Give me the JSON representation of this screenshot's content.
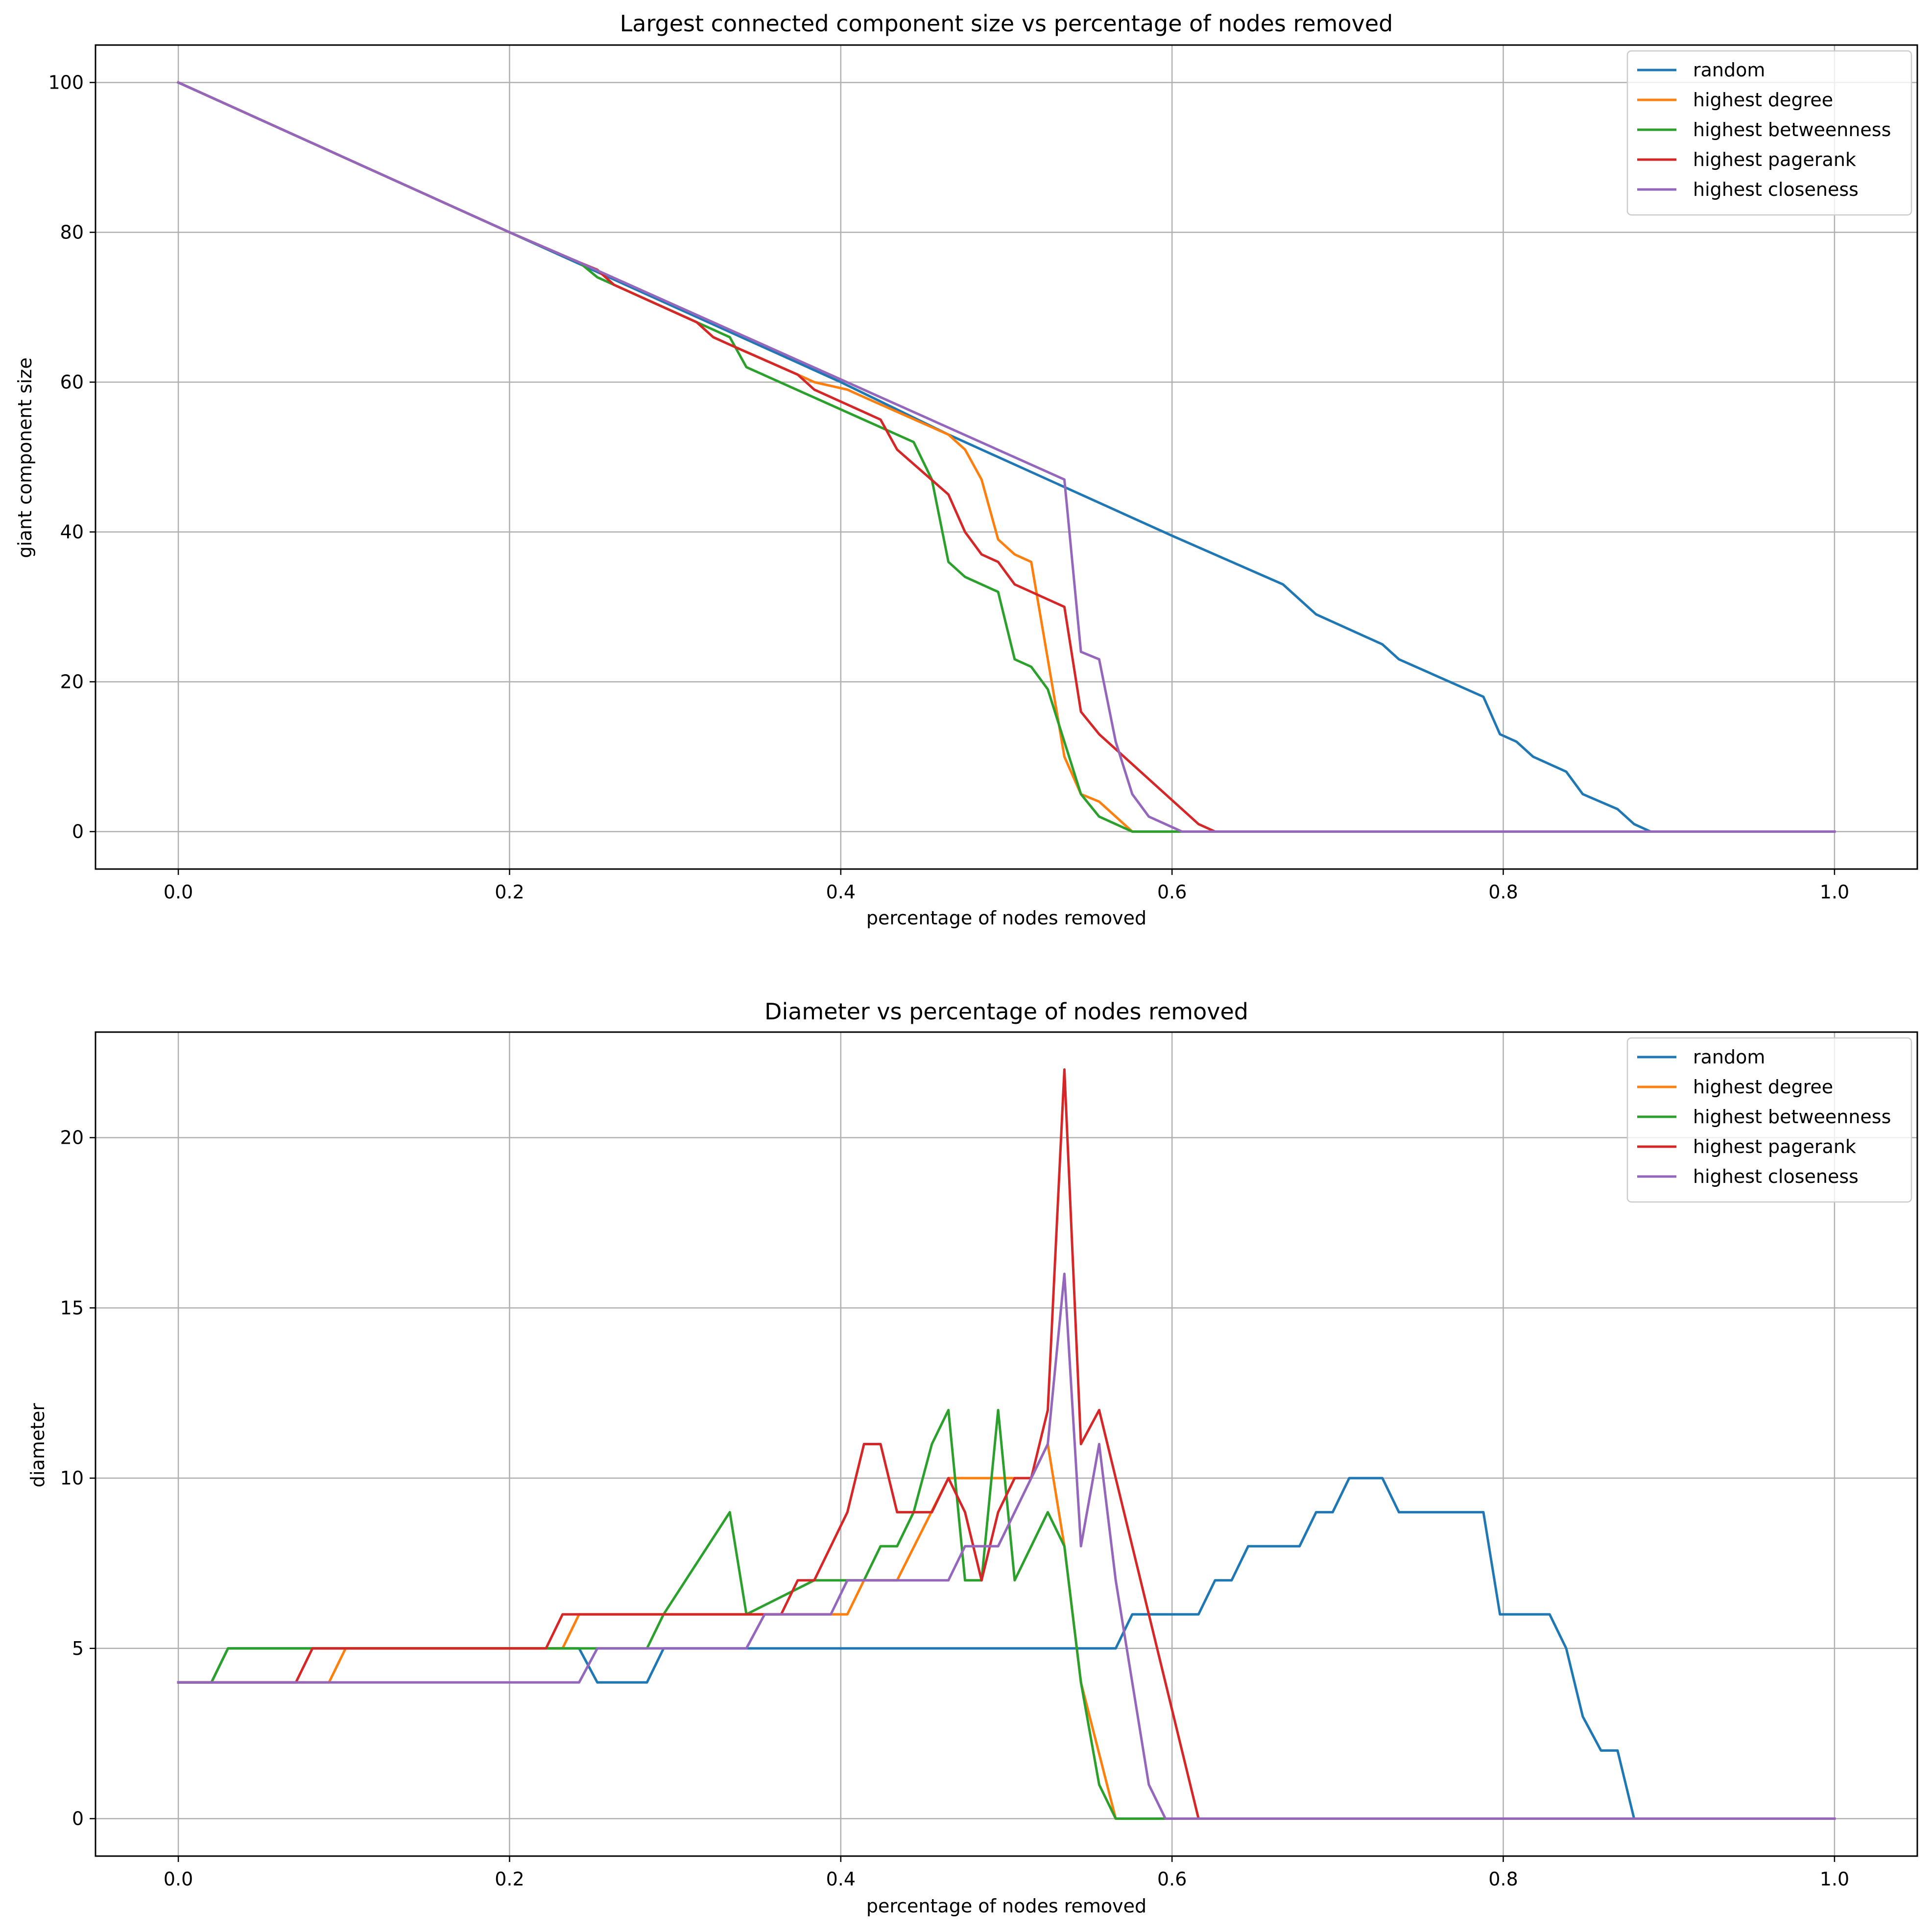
{
  "colors": {
    "random": "#1f77b4",
    "highest degree": "#ff7f0e",
    "highest betweenness": "#2ca02c",
    "highest pagerank": "#d62728",
    "highest closeness": "#9467bd"
  },
  "chart_data": [
    {
      "type": "line",
      "title": "Largest connected component size vs percentage of nodes removed",
      "xlabel": "percentage of nodes removed",
      "ylabel": "giant component size",
      "xlim": [
        -0.05,
        1.05
      ],
      "ylim": [
        -5,
        105
      ],
      "xticks": [
        0.0,
        0.2,
        0.4,
        0.6,
        0.8,
        1.0
      ],
      "xtick_labels": [
        "0.0",
        "0.2",
        "0.4",
        "0.6",
        "0.8",
        "1.0"
      ],
      "yticks": [
        0,
        20,
        40,
        60,
        80,
        100
      ],
      "ytick_labels": [
        "0",
        "20",
        "40",
        "60",
        "80",
        "100"
      ],
      "grid": true,
      "legend_position": "top-right",
      "series": [
        {
          "name": "random",
          "points": [
            [
              0,
              100
            ],
            [
              0.2,
              80
            ],
            [
              0.4,
              60
            ],
            [
              0.465,
              53
            ],
            [
              0.6,
              39.5
            ],
            [
              0.667,
              33
            ],
            [
              0.687,
              29
            ],
            [
              0.727,
              25
            ],
            [
              0.737,
              23
            ],
            [
              0.788,
              18
            ],
            [
              0.798,
              13
            ],
            [
              0.808,
              12
            ],
            [
              0.818,
              10
            ],
            [
              0.838,
              8
            ],
            [
              0.848,
              5
            ],
            [
              0.869,
              3
            ],
            [
              0.879,
              1
            ],
            [
              0.889,
              0
            ],
            [
              1.0,
              0
            ]
          ]
        },
        {
          "name": "highest degree",
          "points": [
            [
              0,
              100
            ],
            [
              0.2,
              80
            ],
            [
              0.242,
              76
            ],
            [
              0.253,
              75
            ],
            [
              0.263,
              73
            ],
            [
              0.313,
              68
            ],
            [
              0.323,
              66
            ],
            [
              0.333,
              65
            ],
            [
              0.374,
              61
            ],
            [
              0.384,
              60
            ],
            [
              0.404,
              59
            ],
            [
              0.414,
              58
            ],
            [
              0.465,
              53
            ],
            [
              0.475,
              51
            ],
            [
              0.485,
              47
            ],
            [
              0.495,
              39
            ],
            [
              0.505,
              37
            ],
            [
              0.515,
              36
            ],
            [
              0.535,
              10
            ],
            [
              0.545,
              5
            ],
            [
              0.556,
              4
            ],
            [
              0.566,
              2
            ],
            [
              0.576,
              0
            ],
            [
              1.0,
              0
            ]
          ]
        },
        {
          "name": "highest betweenness",
          "points": [
            [
              0,
              100
            ],
            [
              0.2,
              80
            ],
            [
              0.242,
              76
            ],
            [
              0.253,
              74
            ],
            [
              0.263,
              73
            ],
            [
              0.313,
              68
            ],
            [
              0.323,
              67
            ],
            [
              0.333,
              66
            ],
            [
              0.343,
              62
            ],
            [
              0.444,
              52
            ],
            [
              0.455,
              47
            ],
            [
              0.465,
              36
            ],
            [
              0.475,
              34
            ],
            [
              0.495,
              32
            ],
            [
              0.505,
              23
            ],
            [
              0.515,
              22
            ],
            [
              0.525,
              19
            ],
            [
              0.545,
              5
            ],
            [
              0.556,
              2
            ],
            [
              0.566,
              1
            ],
            [
              0.576,
              0
            ],
            [
              0.606,
              0
            ],
            [
              1.0,
              0
            ]
          ]
        },
        {
          "name": "highest pagerank",
          "points": [
            [
              0,
              100
            ],
            [
              0.2,
              80
            ],
            [
              0.242,
              76
            ],
            [
              0.253,
              75
            ],
            [
              0.263,
              73
            ],
            [
              0.313,
              68
            ],
            [
              0.323,
              66
            ],
            [
              0.333,
              65
            ],
            [
              0.374,
              61
            ],
            [
              0.384,
              59
            ],
            [
              0.424,
              55
            ],
            [
              0.434,
              51
            ],
            [
              0.465,
              45
            ],
            [
              0.475,
              40
            ],
            [
              0.485,
              37
            ],
            [
              0.495,
              36
            ],
            [
              0.505,
              33
            ],
            [
              0.535,
              30
            ],
            [
              0.545,
              16
            ],
            [
              0.556,
              13
            ],
            [
              0.616,
              1
            ],
            [
              0.626,
              0
            ],
            [
              1.0,
              0
            ]
          ]
        },
        {
          "name": "highest closeness",
          "points": [
            [
              0,
              100
            ],
            [
              0.2,
              80
            ],
            [
              0.242,
              76
            ],
            [
              0.535,
              47
            ],
            [
              0.545,
              24
            ],
            [
              0.556,
              23
            ],
            [
              0.566,
              12
            ],
            [
              0.576,
              5
            ],
            [
              0.586,
              2
            ],
            [
              0.596,
              1
            ],
            [
              0.606,
              0
            ],
            [
              1.0,
              0
            ]
          ]
        }
      ]
    },
    {
      "type": "line",
      "title": "Diameter vs percentage of nodes removed",
      "xlabel": "percentage of nodes removed",
      "ylabel": "diameter",
      "xlim": [
        -0.05,
        1.05
      ],
      "ylim": [
        -1.1,
        23.1
      ],
      "xticks": [
        0.0,
        0.2,
        0.4,
        0.6,
        0.8,
        1.0
      ],
      "xtick_labels": [
        "0.0",
        "0.2",
        "0.4",
        "0.6",
        "0.8",
        "1.0"
      ],
      "yticks": [
        0,
        5,
        10,
        15,
        20
      ],
      "ytick_labels": [
        "0",
        "5",
        "10",
        "15",
        "20"
      ],
      "grid": true,
      "legend_position": "top-right",
      "series": [
        {
          "name": "random",
          "points": [
            [
              0,
              4
            ],
            [
              0.02,
              4
            ],
            [
              0.03,
              5
            ],
            [
              0.242,
              5
            ],
            [
              0.253,
              4
            ],
            [
              0.283,
              4
            ],
            [
              0.293,
              5
            ],
            [
              0.566,
              5
            ],
            [
              0.576,
              6
            ],
            [
              0.616,
              6
            ],
            [
              0.626,
              7
            ],
            [
              0.636,
              7
            ],
            [
              0.646,
              8
            ],
            [
              0.677,
              8
            ],
            [
              0.687,
              9
            ],
            [
              0.697,
              9
            ],
            [
              0.707,
              10
            ],
            [
              0.727,
              10
            ],
            [
              0.737,
              9
            ],
            [
              0.788,
              9
            ],
            [
              0.798,
              6
            ],
            [
              0.828,
              6
            ],
            [
              0.838,
              5
            ],
            [
              0.848,
              3
            ],
            [
              0.859,
              2
            ],
            [
              0.869,
              2
            ],
            [
              0.879,
              0
            ],
            [
              1.0,
              0
            ]
          ]
        },
        {
          "name": "highest degree",
          "points": [
            [
              0,
              4
            ],
            [
              0.091,
              4
            ],
            [
              0.101,
              5
            ],
            [
              0.232,
              5
            ],
            [
              0.242,
              6
            ],
            [
              0.404,
              6
            ],
            [
              0.414,
              7
            ],
            [
              0.434,
              7
            ],
            [
              0.465,
              10
            ],
            [
              0.515,
              10
            ],
            [
              0.525,
              11
            ],
            [
              0.535,
              8
            ],
            [
              0.545,
              4
            ],
            [
              0.566,
              0
            ],
            [
              0.596,
              0
            ],
            [
              1.0,
              0
            ]
          ]
        },
        {
          "name": "highest betweenness",
          "points": [
            [
              0,
              4
            ],
            [
              0.02,
              4
            ],
            [
              0.03,
              5
            ],
            [
              0.283,
              5
            ],
            [
              0.293,
              6
            ],
            [
              0.333,
              9
            ],
            [
              0.343,
              6
            ],
            [
              0.384,
              7
            ],
            [
              0.414,
              7
            ],
            [
              0.424,
              8
            ],
            [
              0.434,
              8
            ],
            [
              0.444,
              9
            ],
            [
              0.455,
              11
            ],
            [
              0.465,
              12
            ],
            [
              0.475,
              7
            ],
            [
              0.485,
              7
            ],
            [
              0.495,
              12
            ],
            [
              0.505,
              7
            ],
            [
              0.525,
              9
            ],
            [
              0.535,
              8
            ],
            [
              0.545,
              4
            ],
            [
              0.556,
              1
            ],
            [
              0.566,
              0
            ],
            [
              0.596,
              0
            ],
            [
              1.0,
              0
            ]
          ]
        },
        {
          "name": "highest pagerank",
          "points": [
            [
              0,
              4
            ],
            [
              0.071,
              4
            ],
            [
              0.081,
              5
            ],
            [
              0.222,
              5
            ],
            [
              0.232,
              6
            ],
            [
              0.364,
              6
            ],
            [
              0.374,
              7
            ],
            [
              0.384,
              7
            ],
            [
              0.404,
              9
            ],
            [
              0.414,
              11
            ],
            [
              0.424,
              11
            ],
            [
              0.434,
              9
            ],
            [
              0.455,
              9
            ],
            [
              0.465,
              10
            ],
            [
              0.475,
              9
            ],
            [
              0.485,
              7
            ],
            [
              0.495,
              9
            ],
            [
              0.505,
              10
            ],
            [
              0.515,
              10
            ],
            [
              0.525,
              12
            ],
            [
              0.535,
              22
            ],
            [
              0.545,
              11
            ],
            [
              0.556,
              12
            ],
            [
              0.616,
              0
            ],
            [
              1.0,
              0
            ]
          ]
        },
        {
          "name": "highest closeness",
          "points": [
            [
              0,
              4
            ],
            [
              0.242,
              4
            ],
            [
              0.253,
              5
            ],
            [
              0.343,
              5
            ],
            [
              0.354,
              6
            ],
            [
              0.394,
              6
            ],
            [
              0.404,
              7
            ],
            [
              0.465,
              7
            ],
            [
              0.475,
              8
            ],
            [
              0.495,
              8
            ],
            [
              0.525,
              11
            ],
            [
              0.535,
              16
            ],
            [
              0.545,
              8
            ],
            [
              0.556,
              11
            ],
            [
              0.566,
              7
            ],
            [
              0.586,
              1
            ],
            [
              0.596,
              0
            ],
            [
              1.0,
              0
            ]
          ]
        }
      ]
    }
  ]
}
